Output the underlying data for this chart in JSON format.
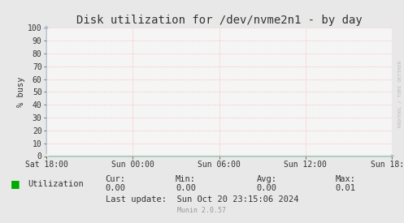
{
  "title": "Disk utilization for /dev/nvme2n1 - by day",
  "ylabel": "% busy",
  "background_color": "#e8e8e8",
  "plot_bg_color": "#f5f5f5",
  "grid_color": "#ffaaaa",
  "axis_color": "#aabbcc",
  "ylim": [
    0,
    100
  ],
  "yticks": [
    0,
    10,
    20,
    30,
    40,
    50,
    60,
    70,
    80,
    90,
    100
  ],
  "xtick_labels": [
    "Sat 18:00",
    "Sun 00:00",
    "Sun 06:00",
    "Sun 12:00",
    "Sun 18:00"
  ],
  "xtick_positions": [
    0.0,
    0.25,
    0.5,
    0.75,
    1.0
  ],
  "line_color": "#00cc00",
  "legend_label": "Utilization",
  "legend_color": "#00aa00",
  "cur_label": "Cur:",
  "cur_value": "0.00",
  "min_label": "Min:",
  "min_value": "0.00",
  "avg_label": "Avg:",
  "avg_value": "0.00",
  "max_label": "Max:",
  "max_value": "0.01",
  "last_update": "Last update:  Sun Oct 20 23:15:06 2024",
  "munin_version": "Munin 2.0.57",
  "watermark": "RRDTOOL / TOBI OETIKER",
  "title_fontsize": 10,
  "label_fontsize": 7.5,
  "tick_fontsize": 7,
  "stats_fontsize": 7.5,
  "munin_fontsize": 6
}
